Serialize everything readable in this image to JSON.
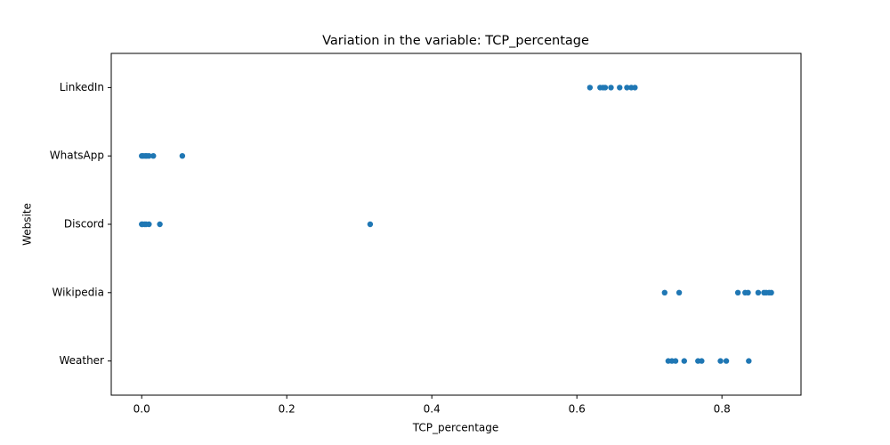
{
  "chart_data": {
    "type": "strip",
    "title": "Variation in the variable: TCP_percentage",
    "x_label": "TCP_percentage",
    "y_label": "Website",
    "color": "#1f77b4",
    "categories": [
      "LinkedIn",
      "WhatsApp",
      "Discord",
      "Wikipedia",
      "Weather"
    ],
    "values": [
      [
        0.618,
        0.632,
        0.636,
        0.639,
        0.647,
        0.659,
        0.669,
        0.675,
        0.68
      ],
      [
        0.0,
        0.002,
        0.005,
        0.007,
        0.01,
        0.016,
        0.056
      ],
      [
        0.0,
        0.001,
        0.004,
        0.006,
        0.01,
        0.025,
        0.315
      ],
      [
        0.721,
        0.741,
        0.822,
        0.832,
        0.836,
        0.85,
        0.858,
        0.861,
        0.865,
        0.868
      ],
      [
        0.726,
        0.731,
        0.736,
        0.748,
        0.767,
        0.772,
        0.798,
        0.806,
        0.837
      ]
    ],
    "xlim": [
      -0.042,
      0.909
    ],
    "xticks": [
      {
        "value": 0,
        "label": "0.0"
      },
      0.2,
      0.4,
      0.6,
      0.8
    ],
    "grid": false
  }
}
